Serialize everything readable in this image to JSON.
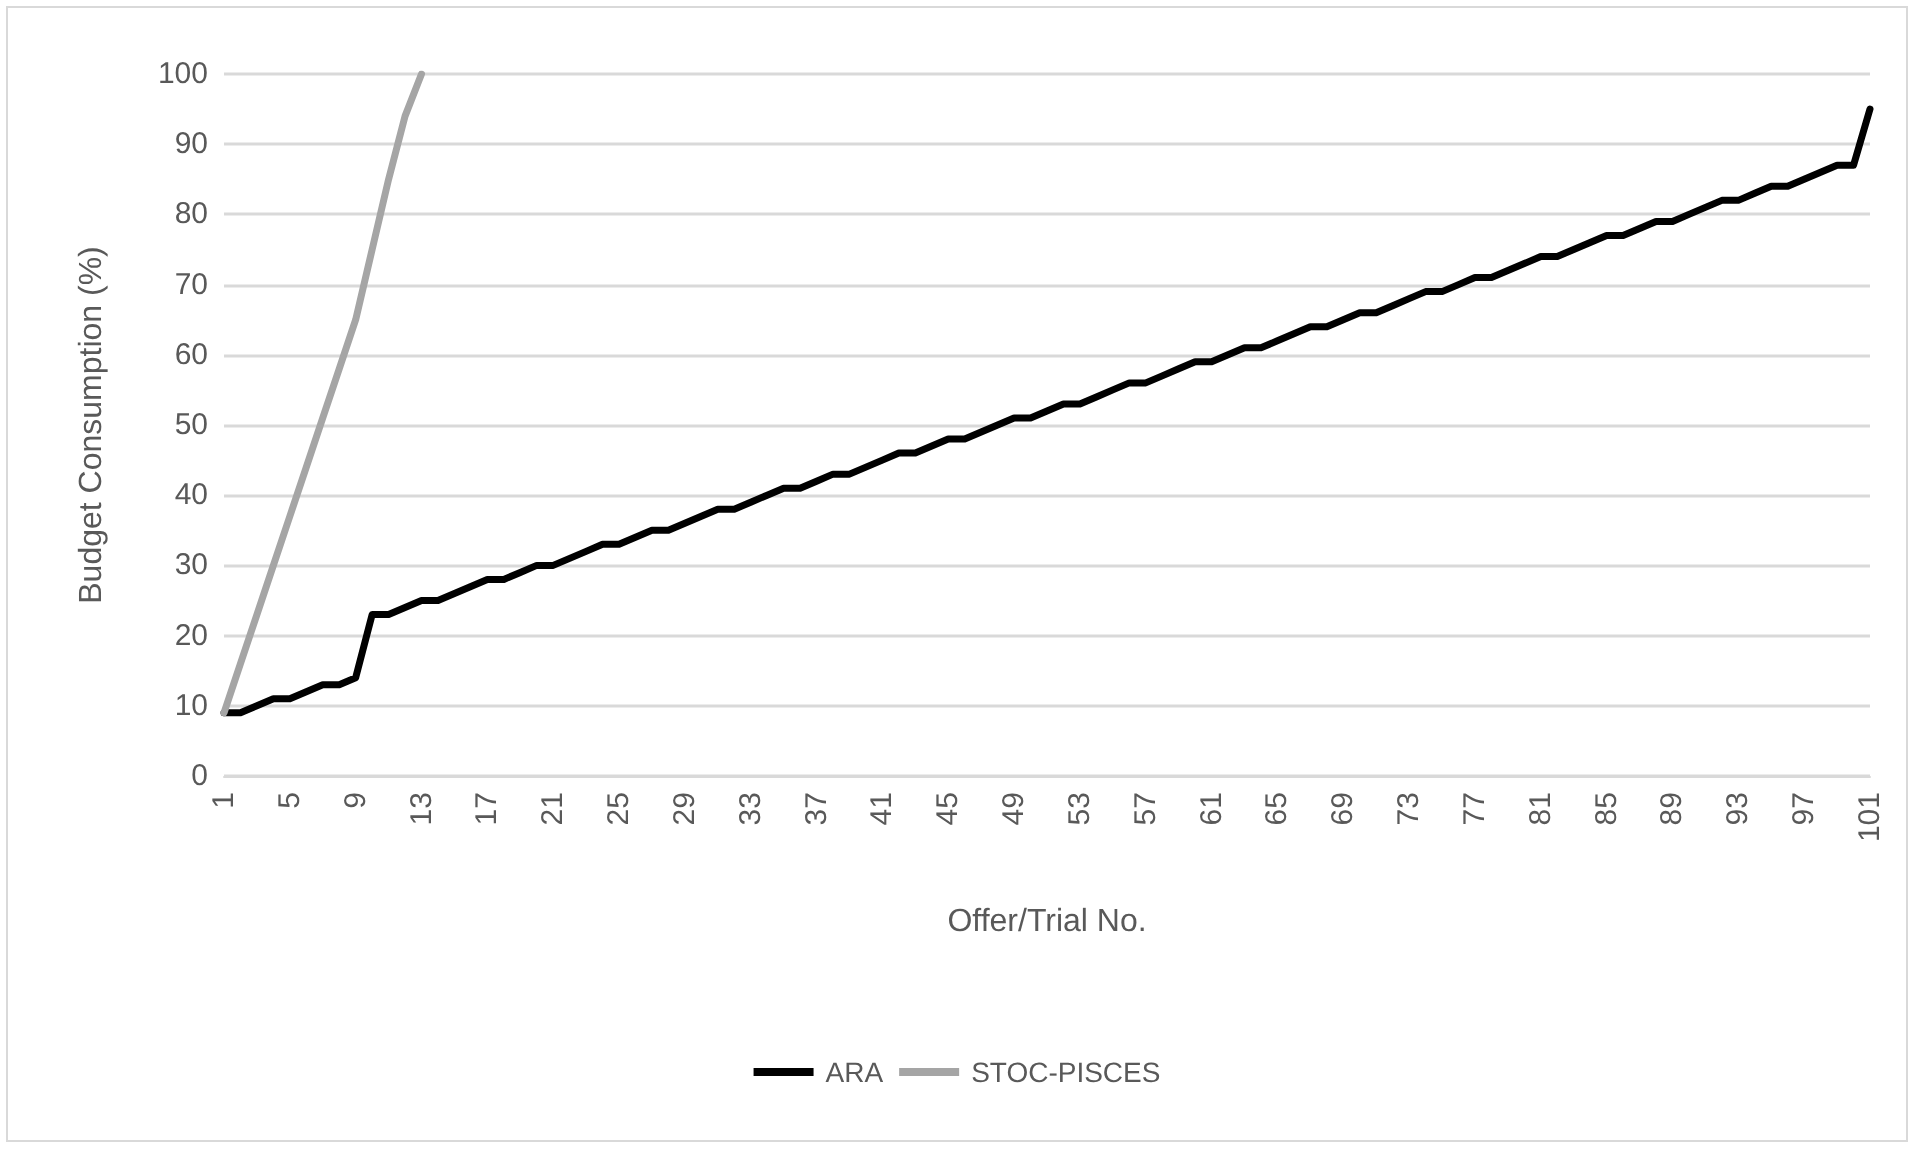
{
  "chart_data": {
    "type": "line",
    "xlabel": "Offer/Trial No.",
    "ylabel": "Budget Consumption (%)",
    "categories": [
      "1",
      null,
      null,
      null,
      "5",
      null,
      null,
      null,
      "9",
      null,
      null,
      null,
      "13",
      null,
      null,
      null,
      "17",
      null,
      null,
      null,
      "21",
      null,
      null,
      null,
      "25",
      null,
      null,
      null,
      "29",
      null,
      null,
      null,
      "33",
      null,
      null,
      null,
      "37",
      null,
      null,
      null,
      "41",
      null,
      null,
      null,
      "45",
      null,
      null,
      null,
      "49",
      null,
      null,
      null,
      "53",
      null,
      null,
      null,
      "57",
      null,
      null,
      null,
      "61",
      null,
      null,
      null,
      "65",
      null,
      null,
      null,
      "69",
      null,
      null,
      null,
      "73",
      null,
      null,
      null,
      "77",
      null,
      null,
      null,
      "81",
      null,
      null,
      null,
      "85",
      null,
      null,
      null,
      "89",
      null,
      null,
      null,
      "93",
      null,
      null,
      null,
      "97",
      null,
      null,
      null,
      "101"
    ],
    "series": [
      {
        "name": "ARA",
        "color": "#000000",
        "values": [
          9,
          9,
          10,
          11,
          11,
          12,
          13,
          13,
          14,
          23,
          23,
          24,
          25,
          25,
          26,
          27,
          28,
          28,
          29,
          30,
          30,
          31,
          32,
          33,
          33,
          34,
          35,
          35,
          36,
          37,
          38,
          38,
          39,
          40,
          41,
          41,
          42,
          43,
          43,
          44,
          45,
          46,
          46,
          47,
          48,
          48,
          49,
          50,
          51,
          51,
          52,
          53,
          53,
          54,
          55,
          56,
          56,
          57,
          58,
          59,
          59,
          60,
          61,
          61,
          62,
          63,
          64,
          64,
          65,
          66,
          66,
          67,
          68,
          69,
          69,
          70,
          71,
          71,
          72,
          73,
          74,
          74,
          75,
          76,
          77,
          77,
          78,
          79,
          79,
          80,
          81,
          82,
          82,
          83,
          84,
          84,
          85,
          86,
          87,
          87,
          95
        ]
      },
      {
        "name": "STOC-PISCES",
        "color": "#a5a5a5",
        "values": [
          9,
          16,
          23,
          30,
          37,
          44,
          51,
          58,
          65,
          75,
          85,
          94,
          100,
          null,
          null,
          null,
          null,
          null,
          null,
          null,
          null,
          null,
          null,
          null,
          null,
          null,
          null,
          null,
          null,
          null,
          null,
          null,
          null,
          null,
          null,
          null,
          null,
          null,
          null,
          null,
          null,
          null,
          null,
          null,
          null,
          null,
          null,
          null,
          null,
          null,
          null,
          null,
          null,
          null,
          null,
          null,
          null,
          null,
          null,
          null,
          null,
          null,
          null,
          null,
          null,
          null,
          null,
          null,
          null,
          null,
          null,
          null,
          null,
          null,
          null,
          null,
          null,
          null,
          null,
          null,
          null,
          null,
          null,
          null,
          null,
          null,
          null,
          null,
          null,
          null,
          null,
          null,
          null,
          null,
          null,
          null,
          null,
          null,
          null,
          null,
          null
        ]
      }
    ],
    "ylim": [
      0,
      100
    ],
    "yticks": [
      0,
      10,
      20,
      30,
      40,
      50,
      60,
      70,
      80,
      90,
      100
    ],
    "grid": "y",
    "legend": "bottom",
    "marker": "none",
    "line_style": "solid"
  }
}
